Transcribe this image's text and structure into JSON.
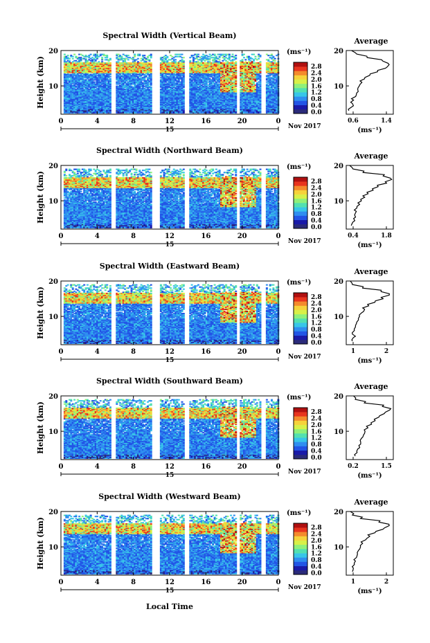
{
  "figure": {
    "xlabel": "Local Time",
    "date_label": "Nov 2017",
    "day_label": "15",
    "colorbar_unit": "(ms⁻¹)",
    "colorbar_ticks": [
      "2.8",
      "2.4",
      "2.0",
      "1.6",
      "1.2",
      "0.8",
      "0.4",
      "0.0"
    ],
    "ylabel": "Height (km)",
    "x_ticks": [
      "0",
      "4",
      "8",
      "12",
      "16",
      "20",
      "0"
    ],
    "y_ticks": [
      "20",
      "10"
    ],
    "avg_title": "Average",
    "avg_xlabel": "(ms⁻¹)",
    "colors": [
      "#2b2b7a",
      "#1a1aa8",
      "#2255e6",
      "#2f8ef0",
      "#38c6e8",
      "#52e0b0",
      "#8ff07a",
      "#d8f048",
      "#f6d23a",
      "#f48a2c",
      "#e8341e",
      "#b01010"
    ]
  },
  "chart_data": [
    {
      "type": "heatmap",
      "title": "Spectral Width (Vertical Beam)",
      "xlabel": "Local Time",
      "ylabel": "Height (km)",
      "xlim": [
        0,
        24
      ],
      "ylim": [
        2,
        20
      ],
      "colorbar_range": [
        0.0,
        3.0
      ],
      "data_gaps_hours": [
        [
          5.4,
          6.0
        ],
        [
          9.9,
          10.8
        ],
        [
          13.6,
          14.1
        ],
        [
          19.3,
          19.6
        ],
        [
          22.0,
          22.5
        ]
      ],
      "avg_profile": {
        "xlim": [
          0.6,
          1.5
        ],
        "xticks": [
          "0.6",
          "1.4"
        ],
        "height": [
          3,
          4,
          5,
          6,
          7,
          8,
          9,
          10,
          11,
          12,
          13,
          14,
          15,
          16,
          17,
          18,
          19,
          20
        ],
        "value": [
          0.65,
          0.7,
          0.72,
          0.74,
          0.78,
          0.8,
          0.82,
          0.85,
          0.9,
          0.95,
          1.05,
          1.2,
          1.35,
          1.42,
          1.3,
          1.0,
          0.8,
          0.7
        ]
      }
    },
    {
      "type": "heatmap",
      "title": "Spectral Width (Northward Beam)",
      "xlabel": "Local Time",
      "ylabel": "Height (km)",
      "xlim": [
        0,
        24
      ],
      "ylim": [
        2,
        20
      ],
      "colorbar_range": [
        0.0,
        3.0
      ],
      "data_gaps_hours": [
        [
          5.4,
          6.0
        ],
        [
          9.9,
          10.8
        ],
        [
          13.6,
          14.1
        ],
        [
          19.3,
          19.6
        ],
        [
          22.0,
          22.5
        ]
      ],
      "avg_profile": {
        "xlim": [
          0.4,
          1.8
        ],
        "xticks": [
          "0.4",
          "1.8"
        ],
        "height": [
          3,
          4,
          5,
          6,
          7,
          8,
          9,
          10,
          11,
          12,
          13,
          14,
          15,
          16,
          17,
          18,
          19,
          20
        ],
        "value": [
          0.55,
          0.6,
          0.62,
          0.65,
          0.7,
          0.72,
          0.8,
          0.85,
          0.95,
          1.05,
          1.2,
          1.35,
          1.6,
          1.75,
          1.5,
          0.9,
          0.6,
          0.5
        ]
      }
    },
    {
      "type": "heatmap",
      "title": "Spectral Width (Eastward Beam)",
      "xlabel": "Local Time",
      "ylabel": "Height (km)",
      "xlim": [
        0,
        24
      ],
      "ylim": [
        2,
        20
      ],
      "colorbar_range": [
        0.0,
        3.0
      ],
      "data_gaps_hours": [
        [
          5.4,
          6.0
        ],
        [
          9.9,
          10.8
        ],
        [
          13.6,
          14.1
        ],
        [
          19.3,
          19.6
        ],
        [
          22.0,
          22.5
        ]
      ],
      "avg_profile": {
        "xlim": [
          0.5,
          2.8
        ],
        "xticks": [
          "1",
          "2"
        ],
        "height": [
          3,
          4,
          5,
          6,
          7,
          8,
          9,
          10,
          11,
          12,
          13,
          14,
          15,
          16,
          17,
          18,
          19,
          20
        ],
        "value": [
          0.8,
          0.85,
          0.8,
          0.9,
          0.95,
          1.0,
          1.1,
          1.15,
          1.25,
          1.4,
          1.6,
          1.9,
          2.3,
          2.6,
          2.2,
          1.3,
          0.8,
          0.7
        ]
      }
    },
    {
      "type": "heatmap",
      "title": "Spectral Width (Southward Beam)",
      "xlabel": "Local Time",
      "ylabel": "Height (km)",
      "xlim": [
        0,
        24
      ],
      "ylim": [
        2,
        20
      ],
      "colorbar_range": [
        0.0,
        3.0
      ],
      "data_gaps_hours": [
        [
          5.4,
          6.0
        ],
        [
          9.9,
          10.8
        ],
        [
          13.6,
          14.1
        ],
        [
          19.3,
          19.6
        ],
        [
          22.0,
          22.5
        ]
      ],
      "avg_profile": {
        "xlim": [
          0.2,
          1.5
        ],
        "xticks": [
          "0.2",
          "1.5"
        ],
        "height": [
          3,
          4,
          5,
          6,
          7,
          8,
          9,
          10,
          11,
          12,
          13,
          14,
          15,
          16,
          17,
          18,
          19,
          20
        ],
        "value": [
          0.45,
          0.5,
          0.52,
          0.55,
          0.6,
          0.62,
          0.68,
          0.72,
          0.8,
          0.9,
          1.0,
          1.1,
          1.25,
          1.4,
          1.2,
          0.7,
          0.45,
          0.4
        ]
      }
    },
    {
      "type": "heatmap",
      "title": "Spectral Width (Westward Beam)",
      "xlabel": "Local Time",
      "ylabel": "Height (km)",
      "xlim": [
        0,
        24
      ],
      "ylim": [
        2,
        20
      ],
      "colorbar_range": [
        0.0,
        3.0
      ],
      "data_gaps_hours": [
        [
          5.4,
          6.0
        ],
        [
          9.9,
          10.8
        ],
        [
          13.6,
          14.1
        ],
        [
          19.3,
          19.6
        ],
        [
          22.0,
          22.5
        ]
      ],
      "avg_profile": {
        "xlim": [
          0.5,
          2.8
        ],
        "xticks": [
          "1",
          "2"
        ],
        "height": [
          3,
          4,
          5,
          6,
          7,
          8,
          9,
          10,
          11,
          12,
          13,
          14,
          15,
          16,
          17,
          18,
          19,
          20
        ],
        "value": [
          0.8,
          0.85,
          0.9,
          0.95,
          1.0,
          1.05,
          1.1,
          1.2,
          1.3,
          1.45,
          1.65,
          1.9,
          2.3,
          2.6,
          2.1,
          1.2,
          0.8,
          0.7
        ]
      }
    }
  ]
}
